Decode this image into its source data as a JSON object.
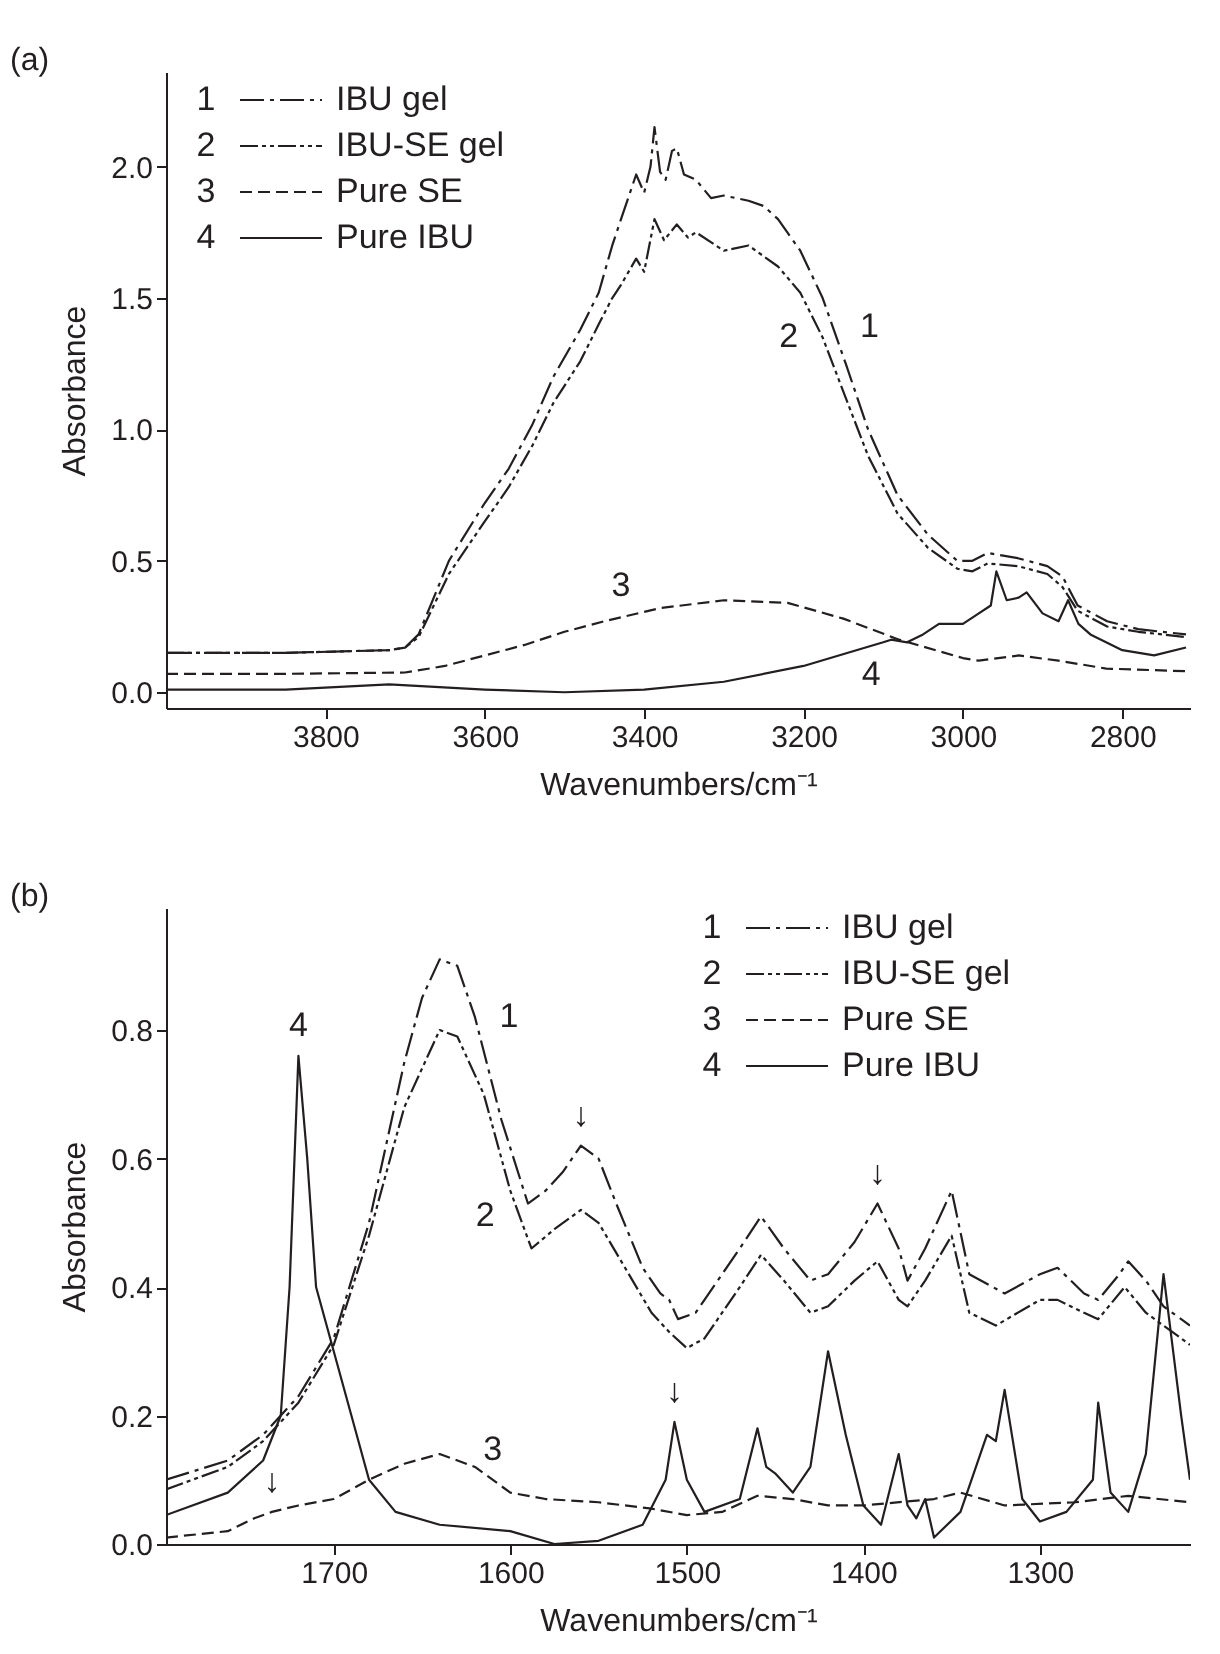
{
  "chart_data": [
    {
      "type": "line",
      "title": "(a)",
      "xlabel": "Wavenumbers/cm⁻¹",
      "ylabel": "Absorbance",
      "xlim": [
        4000,
        2715
      ],
      "ylim": [
        -0.06,
        2.36
      ],
      "xticks": [
        3800,
        3600,
        3400,
        3200,
        3000,
        2800
      ],
      "yticks": [
        {
          "value": 0,
          "label": "0.0"
        },
        {
          "value": 0.5,
          "label": "0.5"
        },
        {
          "value": 1,
          "label": "1.0"
        },
        {
          "value": 1.5,
          "label": "1.5"
        },
        {
          "value": 2,
          "label": "2.0"
        }
      ],
      "legend": "top left",
      "series": [
        {
          "name": "IBU gel",
          "color": "#231f20",
          "line_style": "dashdot",
          "x": [
            4000,
            3850,
            3720,
            3700,
            3683,
            3645,
            3600,
            3570,
            3540,
            3514,
            3480,
            3457,
            3440,
            3429,
            3420,
            3410,
            3400,
            3392,
            3387,
            3380,
            3373,
            3365,
            3359,
            3350,
            3335,
            3316,
            3300,
            3269,
            3250,
            3232,
            3204,
            3176,
            3147,
            3119,
            3082,
            3044,
            3007,
            2988,
            2969,
            2931,
            2894,
            2875,
            2856,
            2819,
            2780,
            2720
          ],
          "values": [
            0.15,
            0.15,
            0.16,
            0.17,
            0.22,
            0.5,
            0.72,
            0.85,
            1.02,
            1.2,
            1.38,
            1.52,
            1.7,
            1.8,
            1.88,
            1.97,
            1.9,
            2.0,
            2.15,
            1.98,
            1.95,
            2.06,
            2.07,
            1.97,
            1.95,
            1.88,
            1.89,
            1.87,
            1.85,
            1.8,
            1.68,
            1.5,
            1.25,
            1.0,
            0.75,
            0.6,
            0.5,
            0.5,
            0.53,
            0.51,
            0.48,
            0.44,
            0.33,
            0.27,
            0.24,
            0.22
          ]
        },
        {
          "name": "IBU-SE gel",
          "color": "#231f20",
          "line_style": "dashdotdot",
          "x": [
            4000,
            3850,
            3720,
            3700,
            3683,
            3645,
            3600,
            3570,
            3540,
            3514,
            3480,
            3457,
            3440,
            3429,
            3410,
            3400,
            3387,
            3375,
            3359,
            3345,
            3335,
            3300,
            3269,
            3232,
            3204,
            3176,
            3147,
            3119,
            3082,
            3044,
            3007,
            2988,
            2969,
            2931,
            2894,
            2875,
            2856,
            2819,
            2780,
            2720
          ],
          "values": [
            0.15,
            0.15,
            0.16,
            0.17,
            0.21,
            0.45,
            0.65,
            0.78,
            0.94,
            1.1,
            1.26,
            1.4,
            1.5,
            1.55,
            1.65,
            1.6,
            1.8,
            1.72,
            1.78,
            1.73,
            1.75,
            1.68,
            1.7,
            1.62,
            1.52,
            1.35,
            1.12,
            0.9,
            0.68,
            0.55,
            0.47,
            0.46,
            0.49,
            0.48,
            0.45,
            0.4,
            0.31,
            0.25,
            0.23,
            0.21
          ]
        },
        {
          "name": "Pure SE",
          "color": "#231f20",
          "line_style": "dashed",
          "x": [
            4000,
            3850,
            3700,
            3650,
            3600,
            3550,
            3500,
            3450,
            3380,
            3300,
            3220,
            3150,
            3080,
            3000,
            2980,
            2930,
            2880,
            2820,
            2720
          ],
          "values": [
            0.07,
            0.07,
            0.075,
            0.1,
            0.14,
            0.18,
            0.23,
            0.27,
            0.32,
            0.35,
            0.34,
            0.28,
            0.2,
            0.13,
            0.12,
            0.14,
            0.12,
            0.09,
            0.08
          ]
        },
        {
          "name": "Pure IBU",
          "color": "#231f20",
          "line_style": "solid",
          "x": [
            4000,
            3850,
            3720,
            3600,
            3500,
            3400,
            3300,
            3200,
            3100,
            3090,
            3070,
            3050,
            3030,
            3000,
            2980,
            2965,
            2958,
            2945,
            2930,
            2920,
            2900,
            2880,
            2868,
            2855,
            2840,
            2800,
            2760,
            2720
          ],
          "values": [
            0.01,
            0.01,
            0.03,
            0.01,
            0.0,
            0.01,
            0.04,
            0.1,
            0.19,
            0.2,
            0.19,
            0.22,
            0.26,
            0.26,
            0.3,
            0.33,
            0.46,
            0.35,
            0.36,
            0.38,
            0.3,
            0.27,
            0.35,
            0.26,
            0.22,
            0.16,
            0.14,
            0.17
          ]
        }
      ],
      "annotations": [
        {
          "text": "1",
          "x": 3160,
          "y": 1.39
        },
        {
          "text": "2",
          "x": 3176,
          "y": 1.35
        },
        {
          "text": "3",
          "x": 3429,
          "y": 0.29
        },
        {
          "text": "4",
          "x": 3115,
          "y": 0.18
        }
      ]
    },
    {
      "type": "line",
      "title": "(b)",
      "xlabel": "Wavenumbers/cm⁻¹",
      "ylabel": "Absorbance",
      "xlim": [
        1795,
        1215
      ],
      "ylim": [
        0,
        0.99
      ],
      "xticks": [
        1700,
        1600,
        1500,
        1400,
        1300
      ],
      "yticks": [
        {
          "value": 0,
          "label": "0.0"
        },
        {
          "value": 0.2,
          "label": "0.2"
        },
        {
          "value": 0.4,
          "label": "0.4"
        },
        {
          "value": 0.6,
          "label": "0.6"
        },
        {
          "value": 0.8,
          "label": "0.8"
        }
      ],
      "legend": "top right",
      "series": [
        {
          "name": "IBU gel",
          "color": "#231f20",
          "line_style": "dashdot",
          "x": [
            1795,
            1760,
            1740,
            1720,
            1700,
            1680,
            1660,
            1650,
            1640,
            1630,
            1620,
            1605,
            1590,
            1580,
            1570,
            1560,
            1550,
            1540,
            1525,
            1515,
            1510,
            1505,
            1495,
            1480,
            1470,
            1458,
            1445,
            1430,
            1420,
            1405,
            1392,
            1380,
            1375,
            1365,
            1350,
            1340,
            1320,
            1300,
            1290,
            1275,
            1267,
            1255,
            1250,
            1240,
            1230,
            1215
          ],
          "values": [
            0.1,
            0.13,
            0.17,
            0.23,
            0.32,
            0.5,
            0.75,
            0.85,
            0.91,
            0.9,
            0.82,
            0.66,
            0.53,
            0.55,
            0.58,
            0.62,
            0.6,
            0.53,
            0.43,
            0.39,
            0.38,
            0.35,
            0.36,
            0.42,
            0.46,
            0.51,
            0.46,
            0.41,
            0.42,
            0.47,
            0.53,
            0.46,
            0.41,
            0.46,
            0.55,
            0.42,
            0.39,
            0.42,
            0.43,
            0.39,
            0.38,
            0.42,
            0.44,
            0.41,
            0.37,
            0.34
          ]
        },
        {
          "name": "IBU-SE gel",
          "color": "#231f20",
          "line_style": "dashdotdot",
          "x": [
            1795,
            1760,
            1740,
            1720,
            1700,
            1680,
            1660,
            1640,
            1630,
            1615,
            1600,
            1588,
            1575,
            1560,
            1550,
            1535,
            1520,
            1510,
            1500,
            1490,
            1470,
            1458,
            1445,
            1430,
            1420,
            1405,
            1392,
            1380,
            1375,
            1365,
            1350,
            1340,
            1325,
            1300,
            1290,
            1275,
            1267,
            1252,
            1240,
            1215
          ],
          "values": [
            0.085,
            0.12,
            0.16,
            0.22,
            0.31,
            0.48,
            0.68,
            0.8,
            0.79,
            0.7,
            0.55,
            0.46,
            0.49,
            0.52,
            0.5,
            0.43,
            0.36,
            0.33,
            0.305,
            0.32,
            0.4,
            0.45,
            0.41,
            0.36,
            0.37,
            0.41,
            0.44,
            0.38,
            0.37,
            0.41,
            0.48,
            0.36,
            0.34,
            0.38,
            0.38,
            0.36,
            0.35,
            0.4,
            0.36,
            0.31
          ]
        },
        {
          "name": "Pure SE",
          "color": "#231f20",
          "line_style": "dashed",
          "x": [
            1795,
            1760,
            1745,
            1735,
            1720,
            1700,
            1680,
            1660,
            1640,
            1620,
            1600,
            1580,
            1550,
            1520,
            1500,
            1480,
            1460,
            1440,
            1420,
            1400,
            1360,
            1345,
            1320,
            1280,
            1250,
            1215
          ],
          "values": [
            0.01,
            0.02,
            0.04,
            0.05,
            0.06,
            0.07,
            0.1,
            0.125,
            0.14,
            0.12,
            0.08,
            0.07,
            0.065,
            0.055,
            0.045,
            0.05,
            0.075,
            0.07,
            0.06,
            0.06,
            0.07,
            0.08,
            0.06,
            0.065,
            0.075,
            0.065
          ]
        },
        {
          "name": "Pure IBU",
          "color": "#231f20",
          "line_style": "solid",
          "x": [
            1795,
            1760,
            1740,
            1730,
            1725,
            1720,
            1715,
            1710,
            1700,
            1690,
            1680,
            1665,
            1640,
            1600,
            1575,
            1550,
            1525,
            1512,
            1507,
            1500,
            1490,
            1470,
            1460,
            1455,
            1450,
            1440,
            1430,
            1420,
            1410,
            1400,
            1390,
            1380,
            1375,
            1370,
            1365,
            1360,
            1345,
            1330,
            1325,
            1320,
            1310,
            1300,
            1285,
            1270,
            1267,
            1260,
            1250,
            1240,
            1230,
            1220,
            1215
          ],
          "values": [
            0.045,
            0.08,
            0.13,
            0.2,
            0.4,
            0.76,
            0.6,
            0.4,
            0.3,
            0.2,
            0.1,
            0.05,
            0.03,
            0.02,
            0.0,
            0.005,
            0.03,
            0.1,
            0.19,
            0.1,
            0.05,
            0.07,
            0.18,
            0.12,
            0.11,
            0.08,
            0.12,
            0.3,
            0.17,
            0.06,
            0.03,
            0.14,
            0.06,
            0.04,
            0.07,
            0.01,
            0.05,
            0.17,
            0.16,
            0.24,
            0.07,
            0.035,
            0.05,
            0.1,
            0.22,
            0.08,
            0.05,
            0.14,
            0.42,
            0.2,
            0.1
          ]
        }
      ],
      "annotations": [
        {
          "text": "1",
          "x": 1620,
          "y": 0.82
        },
        {
          "text": "2",
          "x": 1595,
          "y": 0.51
        },
        {
          "text": "3",
          "x": 1610,
          "y": 0.1
        },
        {
          "text": "4",
          "x": 1720,
          "y": 0.76
        },
        {
          "text": "↓",
          "x": 1735,
          "y": 0.05
        },
        {
          "text": "↓",
          "x": 1560,
          "y": 0.62
        },
        {
          "text": "↓",
          "x": 1392,
          "y": 0.53
        },
        {
          "text": "↓",
          "x": 1507,
          "y": 0.19
        }
      ]
    }
  ]
}
